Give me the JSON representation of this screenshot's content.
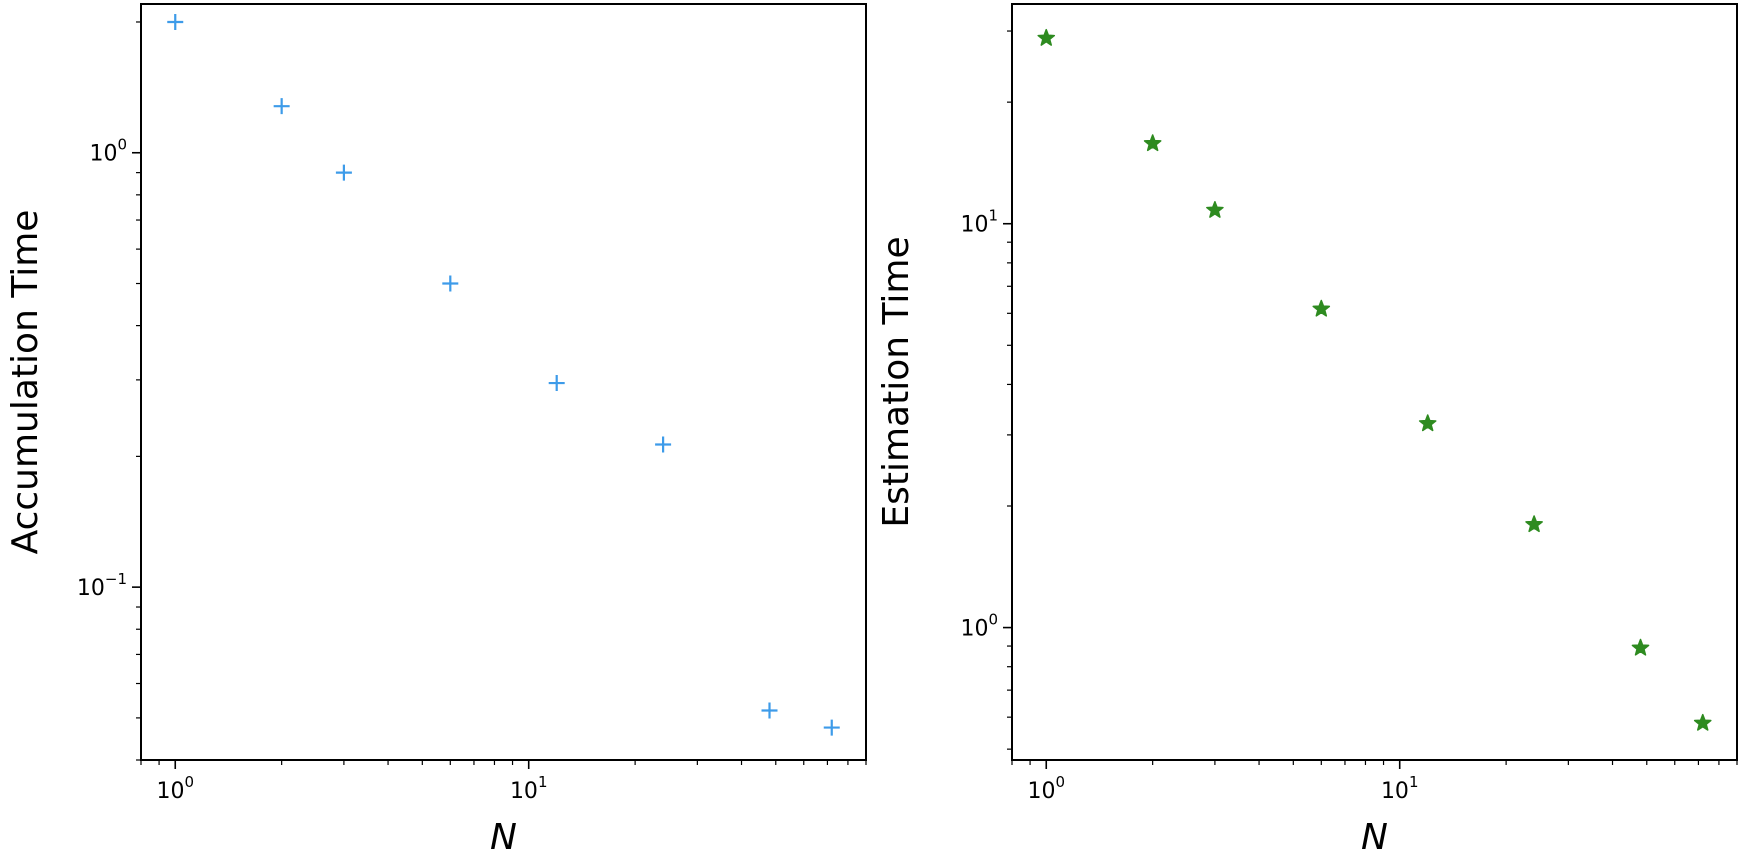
{
  "chart_data": [
    {
      "type": "scatter",
      "title": "",
      "xlabel": "N",
      "ylabel": "Accumulation Time",
      "xscale": "log",
      "yscale": "log",
      "xlim": [
        0.8,
        90
      ],
      "ylim": [
        0.04,
        2.2
      ],
      "x_major_ticks": [
        1,
        10
      ],
      "y_major_ticks": [
        0.1,
        1
      ],
      "x_tick_labels": [
        {
          "base": "10",
          "exp": "0"
        },
        {
          "base": "10",
          "exp": "1"
        }
      ],
      "y_tick_labels": [
        {
          "base": "10",
          "exp": "−1"
        },
        {
          "base": "10",
          "exp": "0"
        }
      ],
      "grid": false,
      "marker": "plus",
      "color": "#3d9be9",
      "series": [
        {
          "x": [
            1,
            2,
            3,
            6,
            12,
            24,
            48,
            72
          ],
          "y": [
            2.0,
            1.28,
            0.9,
            0.5,
            0.295,
            0.213,
            0.052,
            0.0475
          ]
        }
      ]
    },
    {
      "type": "scatter",
      "title": "",
      "xlabel": "N",
      "ylabel": "Estimation Time",
      "xscale": "log",
      "yscale": "log",
      "xlim": [
        0.8,
        90
      ],
      "ylim": [
        0.47,
        35
      ],
      "x_major_ticks": [
        1,
        10
      ],
      "y_major_ticks": [
        1,
        10
      ],
      "x_tick_labels": [
        {
          "base": "10",
          "exp": "0"
        },
        {
          "base": "10",
          "exp": "1"
        }
      ],
      "y_tick_labels": [
        {
          "base": "10",
          "exp": "0"
        },
        {
          "base": "10",
          "exp": "1"
        }
      ],
      "grid": false,
      "marker": "star",
      "color": "#2e8b20",
      "series": [
        {
          "x": [
            1,
            2,
            3,
            6,
            12,
            24,
            48,
            72
          ],
          "y": [
            28.8,
            15.8,
            10.8,
            6.15,
            3.2,
            1.8,
            0.89,
            0.58
          ]
        }
      ]
    }
  ]
}
